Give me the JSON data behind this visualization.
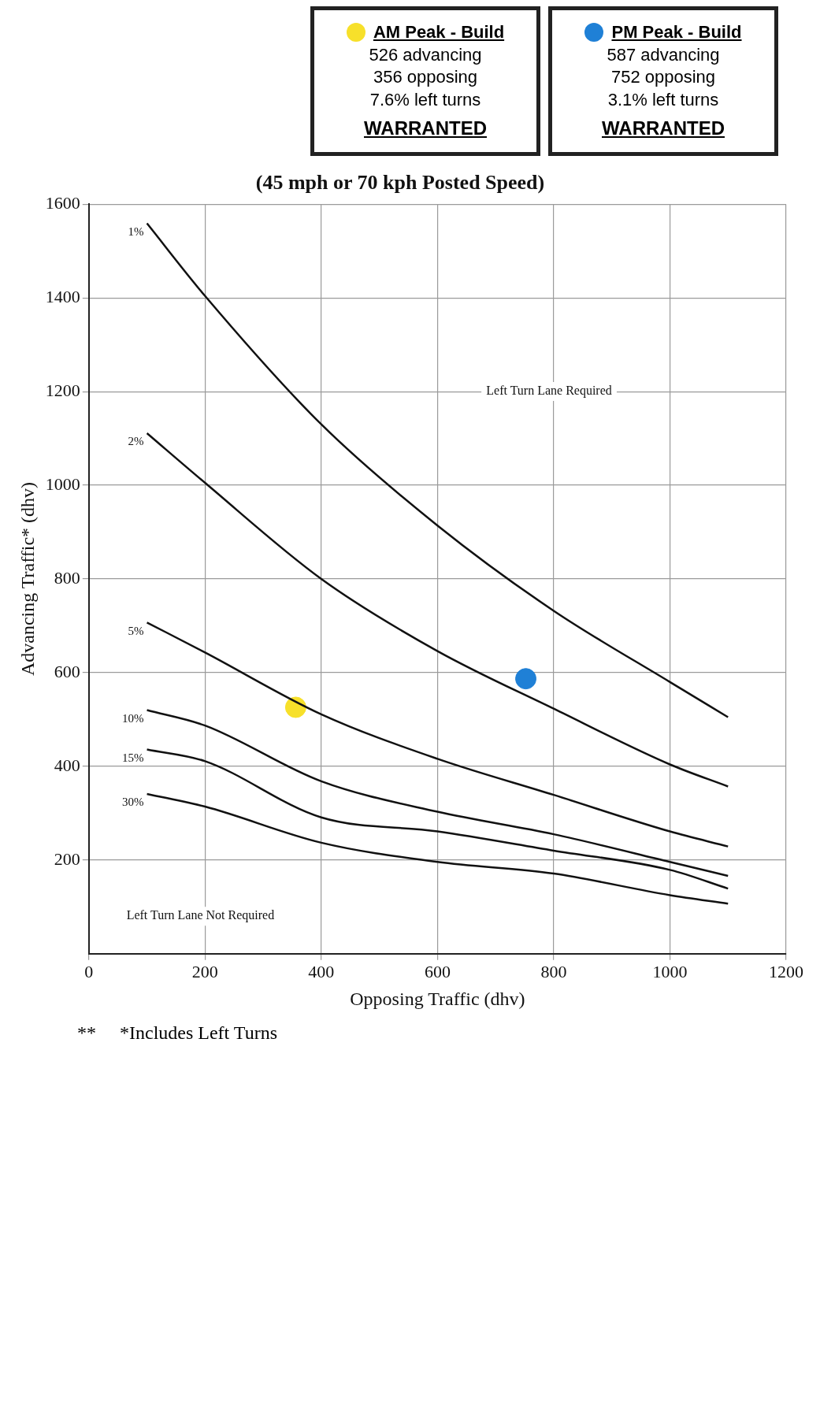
{
  "chart_data": {
    "type": "line",
    "title": "(45 mph or 70 kph Posted Speed)",
    "xlabel": "Opposing Traffic (dhv)",
    "ylabel": "Advancing Traffic* (dhv)",
    "xlim": [
      0,
      1200
    ],
    "xticks": [
      0,
      200,
      400,
      600,
      800,
      1000,
      1200
    ],
    "ylim": [
      0,
      1600
    ],
    "yticks": [
      200,
      400,
      600,
      800,
      1000,
      1200,
      1400,
      1600
    ],
    "grid": true,
    "marker": "none",
    "line_style": "solid",
    "legend": "top right",
    "series": [
      {
        "name": "1%",
        "color": "#111111",
        "x": [
          100,
          200,
          400,
          600,
          800,
          1000,
          1100
        ],
        "values": [
          1559,
          1404,
          1130,
          914,
          732,
          580,
          505
        ]
      },
      {
        "name": "2%",
        "color": "#111111",
        "x": [
          100,
          200,
          400,
          600,
          800,
          1000,
          1100
        ],
        "values": [
          1111,
          1005,
          800,
          646,
          523,
          404,
          357
        ]
      },
      {
        "name": "5%",
        "color": "#111111",
        "x": [
          100,
          200,
          400,
          600,
          800,
          1000,
          1100
        ],
        "values": [
          707,
          643,
          511,
          416,
          339,
          261,
          229
        ]
      },
      {
        "name": "10%",
        "color": "#111111",
        "x": [
          100,
          200,
          400,
          600,
          800,
          1000,
          1100
        ],
        "values": [
          520,
          487,
          368,
          303,
          255,
          196,
          166
        ]
      },
      {
        "name": "15%",
        "color": "#111111",
        "x": [
          100,
          200,
          400,
          600,
          800,
          1000,
          1100
        ],
        "values": [
          436,
          411,
          291,
          261,
          220,
          179,
          139
        ]
      },
      {
        "name": "30%",
        "color": "#111111",
        "x": [
          100,
          200,
          400,
          600,
          800,
          1000,
          1100
        ],
        "values": [
          341,
          314,
          237,
          196,
          171,
          125,
          107
        ]
      },
      {
        "name": "AM Peak - Build",
        "type": "scatter",
        "marker": "circle",
        "color": "#f7e02a",
        "x": [
          356
        ],
        "values": [
          526
        ]
      },
      {
        "name": "PM Peak - Build",
        "type": "scatter",
        "marker": "circle",
        "color": "#1f80d6",
        "x": [
          752
        ],
        "values": [
          587
        ]
      }
    ],
    "annotations": [
      "526 advancing\n356 opposing\n7.6% left turns",
      "WARRANTED",
      "587 advancing\n752 opposing\n3.1% left turns",
      "WARRANTED",
      "**",
      "*Includes Left Turns",
      "Left Turn Lane Required",
      "Left Turn Lane Not Required"
    ]
  }
}
